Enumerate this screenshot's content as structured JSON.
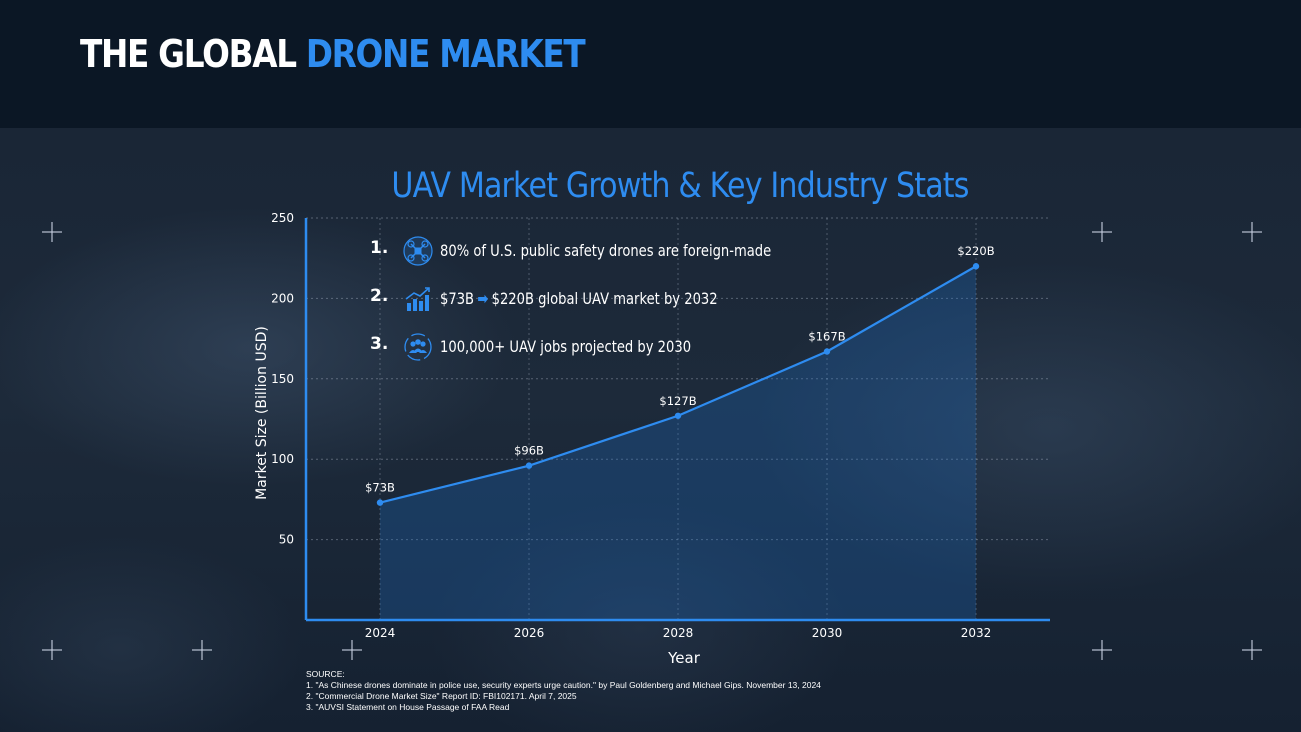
{
  "header": {
    "title_main": "THE GLOBAL",
    "title_accent": "DRONE MARKET"
  },
  "colors": {
    "accent": "#2e8cf0",
    "header_bg": "#0b1725",
    "text": "#ffffff"
  },
  "stats": [
    {
      "number": "1.",
      "icon": "drone-icon",
      "text": "80% of U.S. public safety drones are foreign-made"
    },
    {
      "number": "2.",
      "icon": "growth-chart-icon",
      "text_before": "$73B",
      "text_after": "$220B global UAV market by 2032"
    },
    {
      "number": "3.",
      "icon": "people-cycle-icon",
      "text": "100,000+ UAV jobs projected by 2030"
    }
  ],
  "chart_data": {
    "type": "area",
    "title": "UAV Market Growth & Key Industry Stats",
    "xlabel": "Year",
    "ylabel": "Market Size (Billion USD)",
    "x": [
      2024,
      2026,
      2028,
      2030,
      2032
    ],
    "values": [
      73,
      96,
      127,
      167,
      220
    ],
    "data_labels": [
      "$73B",
      "$96B",
      "$127B",
      "$167B",
      "$220B"
    ],
    "y_ticks": [
      50,
      100,
      150,
      200,
      250
    ],
    "x_ticks": [
      "2024",
      "2026",
      "2028",
      "2030",
      "2032"
    ],
    "ylim": [
      0,
      250
    ],
    "grid": true,
    "line_color": "#2e8cf0"
  },
  "source": {
    "heading": "SOURCE:",
    "items": [
      "1. \"As Chinese drones dominate in police use, security experts urge caution.\" by Paul Goldenberg and Michael Gips. November 13, 2024",
      "2. \"Commercial Drone Market Size\" Report ID: FBI102171. April 7, 2025",
      "3. \"AUVSI Statement on House Passage of FAA Read"
    ]
  }
}
